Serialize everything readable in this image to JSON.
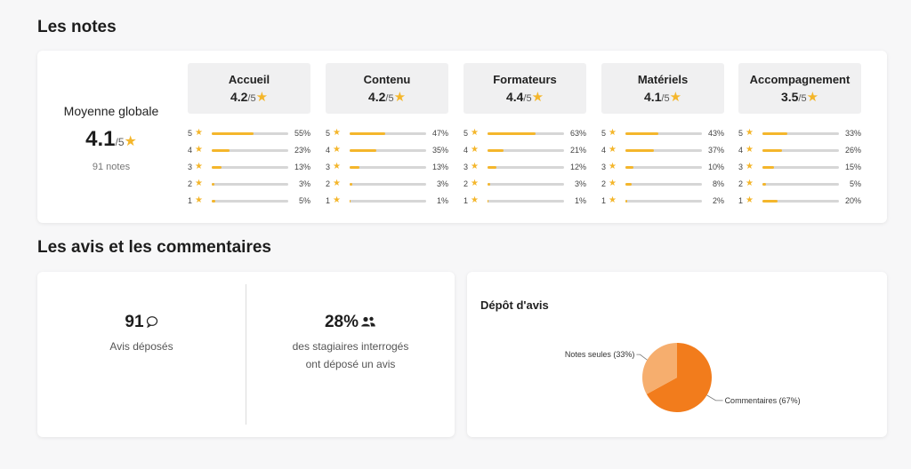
{
  "notes": {
    "title": "Les notes",
    "global": {
      "label": "Moyenne globale",
      "score": "4.1",
      "suffix": "/5",
      "count": "91 notes"
    },
    "categories": [
      {
        "name": "Accueil",
        "score": "4.2",
        "suffix": "/5",
        "rows": [
          {
            "n": "5",
            "pct": "55%",
            "v": 55
          },
          {
            "n": "4",
            "pct": "23%",
            "v": 23
          },
          {
            "n": "3",
            "pct": "13%",
            "v": 13
          },
          {
            "n": "2",
            "pct": "3%",
            "v": 3
          },
          {
            "n": "1",
            "pct": "5%",
            "v": 5
          }
        ]
      },
      {
        "name": "Contenu",
        "score": "4.2",
        "suffix": "/5",
        "rows": [
          {
            "n": "5",
            "pct": "47%",
            "v": 47
          },
          {
            "n": "4",
            "pct": "35%",
            "v": 35
          },
          {
            "n": "3",
            "pct": "13%",
            "v": 13
          },
          {
            "n": "2",
            "pct": "3%",
            "v": 3
          },
          {
            "n": "1",
            "pct": "1%",
            "v": 1
          }
        ]
      },
      {
        "name": "Formateurs",
        "score": "4.4",
        "suffix": "/5",
        "rows": [
          {
            "n": "5",
            "pct": "63%",
            "v": 63
          },
          {
            "n": "4",
            "pct": "21%",
            "v": 21
          },
          {
            "n": "3",
            "pct": "12%",
            "v": 12
          },
          {
            "n": "2",
            "pct": "3%",
            "v": 3
          },
          {
            "n": "1",
            "pct": "1%",
            "v": 1
          }
        ]
      },
      {
        "name": "Matériels",
        "score": "4.1",
        "suffix": "/5",
        "rows": [
          {
            "n": "5",
            "pct": "43%",
            "v": 43
          },
          {
            "n": "4",
            "pct": "37%",
            "v": 37
          },
          {
            "n": "3",
            "pct": "10%",
            "v": 10
          },
          {
            "n": "2",
            "pct": "8%",
            "v": 8
          },
          {
            "n": "1",
            "pct": "2%",
            "v": 2
          }
        ]
      },
      {
        "name": "Accompagnement",
        "score": "3.5",
        "suffix": "/5",
        "rows": [
          {
            "n": "5",
            "pct": "33%",
            "v": 33
          },
          {
            "n": "4",
            "pct": "26%",
            "v": 26
          },
          {
            "n": "3",
            "pct": "15%",
            "v": 15
          },
          {
            "n": "2",
            "pct": "5%",
            "v": 5
          },
          {
            "n": "1",
            "pct": "20%",
            "v": 20
          }
        ]
      }
    ]
  },
  "avis": {
    "title": "Les avis et les commentaires",
    "deposes": {
      "value": "91",
      "label": "Avis déposés",
      "icon": "comment-icon"
    },
    "taux": {
      "value": "28%",
      "line1": "des stagiaires interrogés",
      "line2": "ont déposé un avis",
      "icon": "users-icon"
    }
  },
  "depot": {
    "title": "Dépôt d'avis"
  },
  "chart_data": {
    "type": "pie",
    "title": "Dépôt d'avis",
    "labels": [
      "Notes seules (33%)",
      "Commentaires (67%)"
    ],
    "categories": [
      "Notes seules",
      "Commentaires"
    ],
    "values": [
      33,
      67
    ],
    "colors": [
      "#f6ae6e",
      "#f27c1c"
    ]
  },
  "colors": {
    "accent": "#f4b62b",
    "track": "#d6d6d6",
    "pie_main": "#f27c1c",
    "pie_light": "#f6ae6e"
  }
}
